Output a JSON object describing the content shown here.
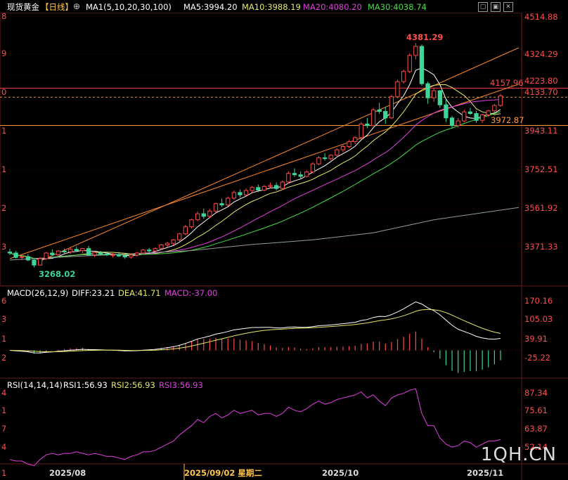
{
  "header": {
    "instrument": "现货黄金",
    "period": "【日线】",
    "ma_label": "MA1(5,10,20,30,100)",
    "ma5": "MA5:3994.20",
    "ma10": "MA10:3988.19",
    "ma20": "MA20:4080.20",
    "ma30": "MA30:4038.74"
  },
  "colors": {
    "bg": "#000000",
    "up": "#ff4a4a",
    "down": "#3ed49a",
    "ma5": "#ffffff",
    "ma10": "#e8e86a",
    "ma20": "#e040e0",
    "ma30": "#44dd44",
    "ma100": "#9a9a9a",
    "trendline": "#ff8a2a",
    "hline_red": "#ff3b3b",
    "hline_orange": "#ff9a40",
    "axis_text": "#ff4d4d",
    "grid": "#2a0d0d"
  },
  "main_axis": {
    "ticks": [
      "4514.88",
      "4324.29",
      "4223.80",
      "4133.70",
      "3943.11",
      "3752.51",
      "3561.92",
      "3371.33"
    ],
    "left_fragments": [
      "8",
      "9",
      "0",
      "1",
      "1",
      "2",
      "3"
    ]
  },
  "annotations": {
    "high": "4381.29",
    "low": "3268.02",
    "line_upper": "4157.96",
    "line_lower": "3972.87"
  },
  "macd": {
    "label": "MACD(26,12,9)",
    "diff": "DIFF:23.21",
    "dea": "DEA:41.71",
    "macd": "MACD:-37.00",
    "ticks": [
      "170.16",
      "105.03",
      "39.91",
      "-25.22"
    ],
    "left_fragments": [
      "6",
      "3",
      "1",
      "2"
    ]
  },
  "rsi": {
    "label": "RSI(14,14,14)",
    "rsi1": "RSI1:56.93",
    "rsi2": "RSI2:56.93",
    "rsi3": "RSI3:56.93",
    "ticks": [
      "87.34",
      "75.61",
      "63.87",
      "52.14"
    ],
    "left_fragments": [
      "4",
      "1",
      "7",
      "4"
    ]
  },
  "x_axis": {
    "labels": [
      "2025/08",
      "2025/09/02 星期二",
      "2025/10",
      "2025/11"
    ],
    "left_fragment": "1"
  },
  "watermark": "1QH.CN",
  "toolbar_icons": [
    "maximize-icon",
    "restore-icon",
    "close-icon"
  ],
  "chart_data": [
    {
      "type": "candlestick",
      "title": "现货黄金【日线】",
      "y_ticks": [
        3371.33,
        3561.92,
        3752.51,
        3943.11,
        4133.7,
        4223.8,
        4324.29,
        4514.88
      ],
      "highest": 4381.29,
      "lowest": 3268.02,
      "ohlc": [
        [
          3345,
          3360,
          3330,
          3340
        ],
        [
          3340,
          3350,
          3312,
          3318
        ],
        [
          3318,
          3330,
          3305,
          3322
        ],
        [
          3322,
          3335,
          3300,
          3305
        ],
        [
          3305,
          3310,
          3268.02,
          3280
        ],
        [
          3280,
          3320,
          3278,
          3312
        ],
        [
          3312,
          3345,
          3305,
          3340
        ],
        [
          3340,
          3358,
          3325,
          3332
        ],
        [
          3332,
          3355,
          3322,
          3350
        ],
        [
          3350,
          3362,
          3338,
          3345
        ],
        [
          3345,
          3365,
          3335,
          3358
        ],
        [
          3358,
          3372,
          3345,
          3352
        ],
        [
          3352,
          3365,
          3340,
          3362
        ],
        [
          3362,
          3375,
          3325,
          3330
        ],
        [
          3330,
          3345,
          3320,
          3342
        ],
        [
          3342,
          3350,
          3328,
          3335
        ],
        [
          3335,
          3348,
          3325,
          3330
        ],
        [
          3330,
          3340,
          3318,
          3332
        ],
        [
          3332,
          3345,
          3320,
          3325
        ],
        [
          3325,
          3335,
          3310,
          3320
        ],
        [
          3320,
          3338,
          3312,
          3330
        ],
        [
          3330,
          3345,
          3322,
          3340
        ],
        [
          3340,
          3360,
          3332,
          3355
        ],
        [
          3355,
          3365,
          3342,
          3350
        ],
        [
          3350,
          3368,
          3345,
          3362
        ],
        [
          3362,
          3385,
          3355,
          3380
        ],
        [
          3380,
          3395,
          3370,
          3388
        ],
        [
          3388,
          3410,
          3380,
          3405
        ],
        [
          3405,
          3440,
          3398,
          3435
        ],
        [
          3435,
          3480,
          3428,
          3470
        ],
        [
          3470,
          3510,
          3462,
          3505
        ],
        [
          3505,
          3545,
          3498,
          3535
        ],
        [
          3535,
          3560,
          3510,
          3522
        ],
        [
          3522,
          3558,
          3515,
          3548
        ],
        [
          3548,
          3590,
          3540,
          3585
        ],
        [
          3585,
          3610,
          3568,
          3578
        ],
        [
          3578,
          3620,
          3572,
          3612
        ],
        [
          3612,
          3650,
          3605,
          3640
        ],
        [
          3640,
          3655,
          3615,
          3628
        ],
        [
          3628,
          3660,
          3622,
          3650
        ],
        [
          3650,
          3672,
          3640,
          3665
        ],
        [
          3665,
          3680,
          3642,
          3652
        ],
        [
          3652,
          3678,
          3645,
          3670
        ],
        [
          3670,
          3690,
          3662,
          3675
        ],
        [
          3675,
          3690,
          3650,
          3660
        ],
        [
          3660,
          3700,
          3652,
          3692
        ],
        [
          3692,
          3745,
          3685,
          3735
        ],
        [
          3735,
          3760,
          3718,
          3728
        ],
        [
          3728,
          3745,
          3710,
          3720
        ],
        [
          3720,
          3750,
          3715,
          3742
        ],
        [
          3742,
          3790,
          3735,
          3782
        ],
        [
          3782,
          3820,
          3775,
          3812
        ],
        [
          3812,
          3835,
          3798,
          3808
        ],
        [
          3808,
          3830,
          3800,
          3825
        ],
        [
          3825,
          3860,
          3812,
          3852
        ],
        [
          3852,
          3880,
          3840,
          3868
        ],
        [
          3868,
          3900,
          3860,
          3892
        ],
        [
          3892,
          3920,
          3880,
          3912
        ],
        [
          3912,
          3990,
          3905,
          3980
        ],
        [
          3980,
          4010,
          3960,
          3972
        ],
        [
          3972,
          4060,
          3968,
          4050
        ],
        [
          4050,
          4085,
          4030,
          4042
        ],
        [
          4042,
          4065,
          3980,
          4010
        ],
        [
          4010,
          4125,
          4005,
          4115
        ],
        [
          4115,
          4200,
          4108,
          4190
        ],
        [
          4190,
          4250,
          4180,
          4240
        ],
        [
          4240,
          4330,
          4232,
          4320
        ],
        [
          4320,
          4381.29,
          4300,
          4365
        ],
        [
          4365,
          4375,
          4170,
          4180
        ],
        [
          4180,
          4190,
          4080,
          4110
        ],
        [
          4110,
          4160,
          4090,
          4145
        ],
        [
          4145,
          4150,
          4060,
          4075
        ],
        [
          4075,
          4100,
          3990,
          4010
        ],
        [
          4010,
          4020,
          3960,
          3972
        ],
        [
          3972,
          4010,
          3960,
          3995
        ],
        [
          3995,
          4050,
          3988,
          4040
        ],
        [
          4040,
          4060,
          4025,
          4032
        ],
        [
          4032,
          4045,
          3985,
          3998
        ],
        [
          3998,
          4030,
          3985,
          4025
        ],
        [
          4025,
          4050,
          4015,
          4045
        ],
        [
          4045,
          4080,
          4035,
          4072
        ],
        [
          4072,
          4130,
          4065,
          4120
        ]
      ],
      "ma100": [
        [
          0,
          3305
        ],
        [
          10,
          3322
        ],
        [
          20,
          3336
        ],
        [
          30,
          3352
        ],
        [
          40,
          3382
        ],
        [
          50,
          3405
        ],
        [
          60,
          3440
        ],
        [
          70,
          3505
        ],
        [
          80,
          3548
        ],
        [
          84,
          3566
        ]
      ],
      "trendlines": [
        {
          "from": [
            5,
            3300
          ],
          "to": [
            84,
            4358
          ]
        },
        {
          "from": [
            0,
            3312
          ],
          "to": [
            84,
            4178
          ]
        }
      ],
      "hlines": [
        4157.96,
        3972.87,
        4113.0
      ]
    },
    {
      "type": "bar+line",
      "title": "MACD(26,12,9)",
      "y_ticks": [
        -25.22,
        39.91,
        105.03,
        170.16
      ],
      "diff_last": 23.21,
      "dea_last": 41.71,
      "macd_last": -37.0
    },
    {
      "type": "line",
      "title": "RSI(14,14,14)",
      "y_ticks": [
        52.14,
        63.87,
        75.61,
        87.34
      ],
      "last": 56.93,
      "rsi": [
        44,
        43,
        43,
        41,
        40,
        44,
        47,
        48,
        47,
        48,
        48,
        49,
        48,
        47,
        48,
        47,
        46,
        46,
        45,
        44,
        46,
        47,
        49,
        49,
        50,
        52,
        54,
        56,
        60,
        63,
        66,
        70,
        68,
        72,
        74,
        71,
        73,
        76,
        74,
        75,
        76,
        73,
        74,
        74,
        72,
        74,
        78,
        76,
        75,
        77,
        80,
        82,
        80,
        81,
        83,
        84,
        85,
        86,
        88,
        84,
        86,
        82,
        79,
        84,
        86,
        87,
        89,
        90,
        74,
        66,
        66,
        58,
        54,
        52,
        53,
        56,
        55,
        52,
        54,
        56,
        56,
        57
      ]
    }
  ]
}
